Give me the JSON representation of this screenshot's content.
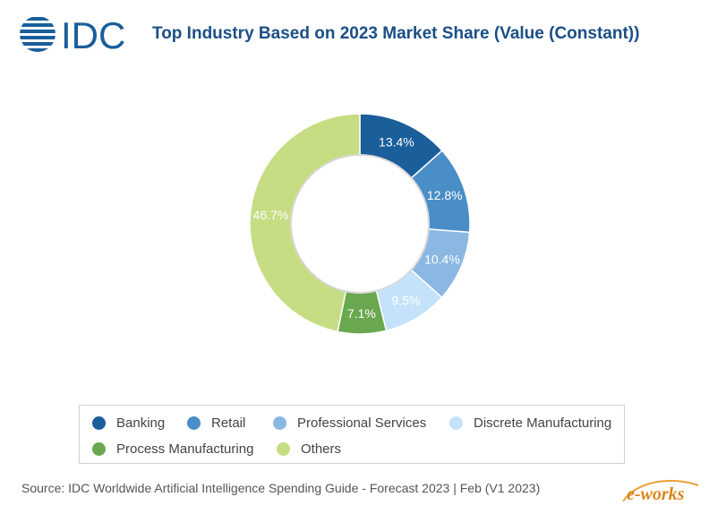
{
  "brand": {
    "logo_text": "IDC",
    "watermark_text": "e-works"
  },
  "chart_data": {
    "type": "pie",
    "title": "Top Industry Based on 2023 Market Share (Value (Constant))",
    "donut": true,
    "start_angle_deg": 90,
    "direction": "clockwise",
    "legend_position": "bottom",
    "series": [
      {
        "name": "Banking",
        "value": 13.4,
        "label": "13.4%",
        "color": "#1a5e9a"
      },
      {
        "name": "Retail",
        "value": 12.8,
        "label": "12.8%",
        "color": "#4a8ec8"
      },
      {
        "name": "Professional Services",
        "value": 10.4,
        "label": "10.4%",
        "color": "#8ab8e2"
      },
      {
        "name": "Discrete Manufacturing",
        "value": 9.5,
        "label": "9.5%",
        "color": "#c4e2f9"
      },
      {
        "name": "Process Manufacturing",
        "value": 7.1,
        "label": "7.1%",
        "color": "#6aa84f"
      },
      {
        "name": "Others",
        "value": 46.7,
        "label": "46.7%",
        "color": "#c6dd84"
      }
    ]
  },
  "source": "Source: IDC Worldwide Artificial Intelligence Spending Guide - Forecast 2023 | Feb (V1 2023)"
}
